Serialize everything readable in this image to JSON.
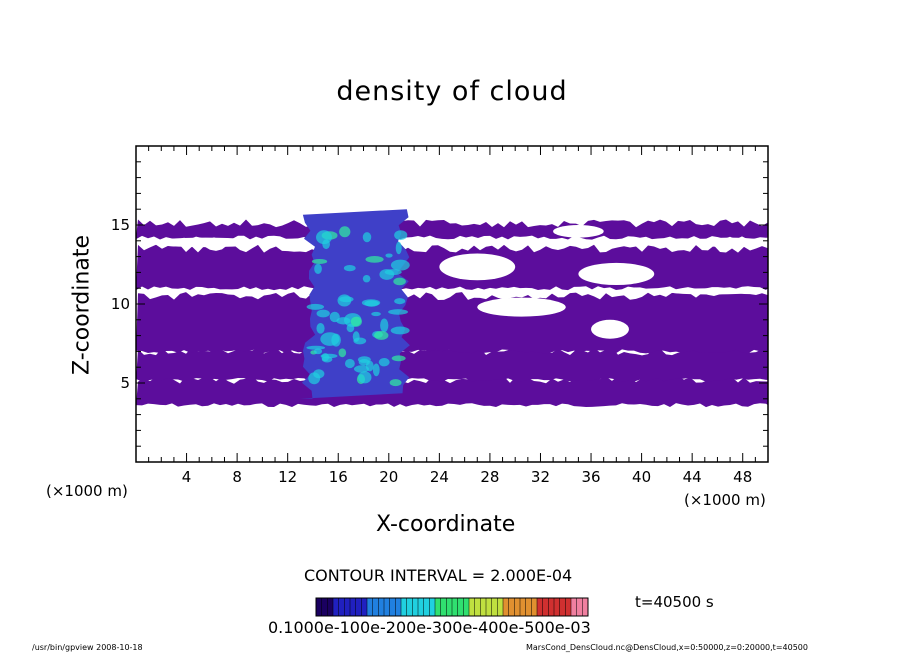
{
  "chart_data": {
    "type": "heatmap",
    "title": "density of cloud",
    "xlabel": "X-coordinate",
    "ylabel": "Z-coordinate",
    "x_unit": "(×1000 m)",
    "xlim": [
      0,
      50
    ],
    "ylim": [
      0,
      20
    ],
    "x_ticks": [
      "4",
      "8",
      "12",
      "16",
      "20",
      "24",
      "28",
      "32",
      "36",
      "40",
      "44",
      "48"
    ],
    "y_ticks": [
      "5",
      "10",
      "15"
    ],
    "contour_interval": "CONTOUR INTERVAL = 2.000E-04",
    "time_label": "t=40500 s",
    "colorbar_labels": "0.1000e-100e-200e-300e-400e-500e-03",
    "colorbar_range": [
      0.0,
      0.0005
    ],
    "colors": {
      "low": "#5c0d9c",
      "mid": "#3f40c8",
      "high": "#1fd0e0",
      "peak": "#30f0a0"
    },
    "cloud_layers": [
      {
        "x": [
          0,
          50
        ],
        "z": [
          3.6,
          5.2
        ],
        "level": "low"
      },
      {
        "x": [
          0,
          50
        ],
        "z": [
          5.2,
          7.0
        ],
        "level": "low"
      },
      {
        "x": [
          0,
          50
        ],
        "z": [
          7.0,
          10.5
        ],
        "level": "low"
      },
      {
        "x": [
          0,
          50
        ],
        "z": [
          11.0,
          13.5
        ],
        "level": "low"
      },
      {
        "x": [
          0,
          50
        ],
        "z": [
          14.2,
          15.1
        ],
        "level": "low"
      }
    ],
    "core": {
      "x": [
        13,
        22
      ],
      "z": [
        4,
        16
      ],
      "level": "high"
    }
  },
  "footer": {
    "left": "/usr/bin/gpview   2008-10-18",
    "right": "MarsCond_DensCloud.nc@DensCloud,x=0:50000,z=0:20000,t=40500"
  }
}
